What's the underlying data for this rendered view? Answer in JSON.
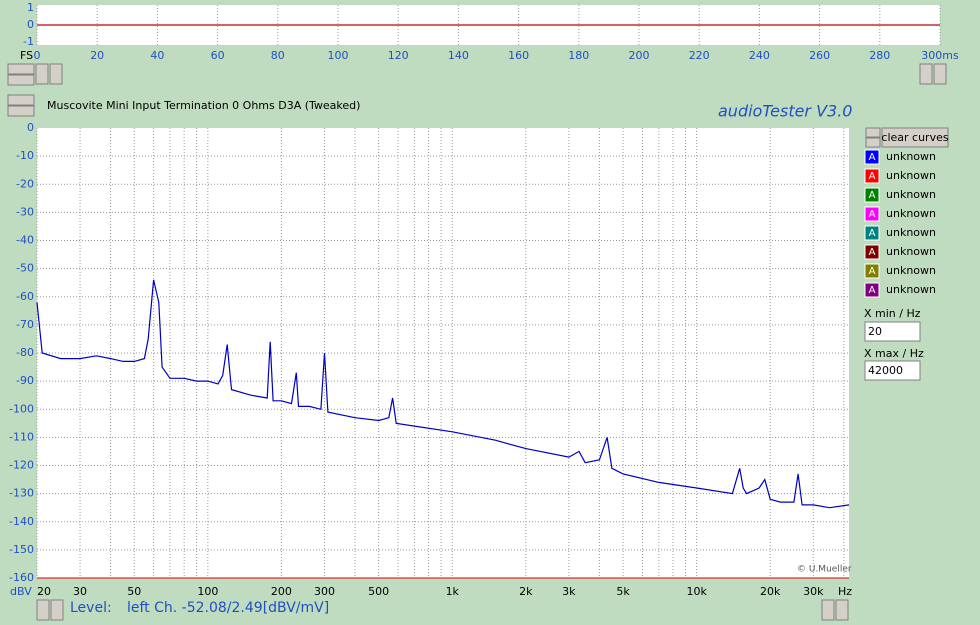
{
  "header": {
    "title": "Muscovite Mini Input Termination 0 Ohms D3A (Tweaked)",
    "app": "audioTester  V3.0",
    "credit": "© U.Mueller"
  },
  "chart_data": [
    {
      "type": "line",
      "xlabel": "FS",
      "xlim": [
        0,
        300
      ],
      "ylim": [
        -1,
        1
      ],
      "yticks": [
        1,
        0,
        -1
      ],
      "xticks": [
        0,
        20,
        40,
        60,
        80,
        100,
        120,
        140,
        160,
        180,
        200,
        220,
        240,
        260,
        280,
        {
          "value": 300,
          "label": "300ms"
        }
      ],
      "grid": true,
      "series": [
        {
          "color": "#c00000",
          "x": [
            0,
            300
          ],
          "values": [
            0,
            0
          ]
        }
      ]
    },
    {
      "type": "line",
      "ylabel": "dBV",
      "xlabel": "Hz",
      "log_x": true,
      "xlim": [
        20,
        42000
      ],
      "ylim": [
        -160,
        0
      ],
      "yticks": [
        0,
        -10,
        -20,
        -30,
        -40,
        -50,
        -60,
        -70,
        -80,
        -90,
        -100,
        -110,
        -120,
        -130,
        -140,
        -150,
        -160
      ],
      "xticks": [
        20,
        30,
        50,
        100,
        200,
        300,
        500,
        {
          "value": 1000,
          "label": "1k"
        },
        {
          "value": 2000,
          "label": "2k"
        },
        {
          "value": 3000,
          "label": "3k"
        },
        {
          "value": 5000,
          "label": "5k"
        },
        {
          "value": 10000,
          "label": "10k"
        },
        {
          "value": 20000,
          "label": "20k"
        },
        {
          "value": 30000,
          "label": "30k"
        }
      ],
      "xminor": [
        40,
        60,
        70,
        80,
        90,
        400,
        600,
        700,
        800,
        900,
        4000,
        6000,
        7000,
        8000,
        9000,
        40000
      ],
      "grid": true,
      "series": [
        {
          "color": "#0000c0",
          "x": [
            20,
            21,
            25,
            30,
            35,
            40,
            45,
            50,
            55,
            57,
            60,
            63,
            65,
            70,
            80,
            90,
            100,
            110,
            115,
            120,
            125,
            150,
            175,
            180,
            185,
            200,
            220,
            230,
            235,
            260,
            290,
            300,
            310,
            400,
            500,
            550,
            570,
            590,
            700,
            1000,
            1500,
            2000,
            3000,
            3300,
            3500,
            4000,
            4300,
            4500,
            5000,
            7000,
            10000,
            14000,
            15000,
            15500,
            16000,
            18000,
            19000,
            20000,
            22000,
            25000,
            26000,
            27000,
            30000,
            35000,
            42000
          ],
          "values": [
            -62,
            -80,
            -82,
            -82,
            -81,
            -82,
            -83,
            -83,
            -82,
            -75,
            -54,
            -62,
            -85,
            -89,
            -89,
            -90,
            -90,
            -91,
            -88,
            -77,
            -93,
            -95,
            -96,
            -76,
            -97,
            -97,
            -98,
            -87,
            -99,
            -99,
            -100,
            -80,
            -101,
            -103,
            -104,
            -103,
            -96,
            -105,
            -106,
            -108,
            -111,
            -114,
            -117,
            -115,
            -119,
            -118,
            -110,
            -121,
            -123,
            -126,
            -128,
            -130,
            -121,
            -128,
            -130,
            -128,
            -125,
            -132,
            -133,
            -133,
            -123,
            -134,
            -134,
            -135,
            -134
          ]
        }
      ]
    }
  ],
  "legend": {
    "button": "clear curves",
    "items": [
      {
        "icon": "A",
        "name": "unknown",
        "color": "#0000ff"
      },
      {
        "icon": "A",
        "name": "unknown",
        "color": "#ff0000"
      },
      {
        "icon": "A",
        "name": "unknown",
        "color": "#008000"
      },
      {
        "icon": "A",
        "name": "unknown",
        "color": "#ff00ff"
      },
      {
        "icon": "A",
        "name": "unknown",
        "color": "#008080"
      },
      {
        "icon": "A",
        "name": "unknown",
        "color": "#800000"
      },
      {
        "icon": "A",
        "name": "unknown",
        "color": "#808000"
      },
      {
        "icon": "A",
        "name": "unknown",
        "color": "#800080"
      }
    ]
  },
  "controls": {
    "xmin_label": "X min / Hz",
    "xmin": "20",
    "xmax_label": "X max / Hz",
    "xmax": "42000"
  },
  "status": {
    "label": "Level:",
    "text": "left Ch. -52.08/2.49[dBV/mV]"
  }
}
